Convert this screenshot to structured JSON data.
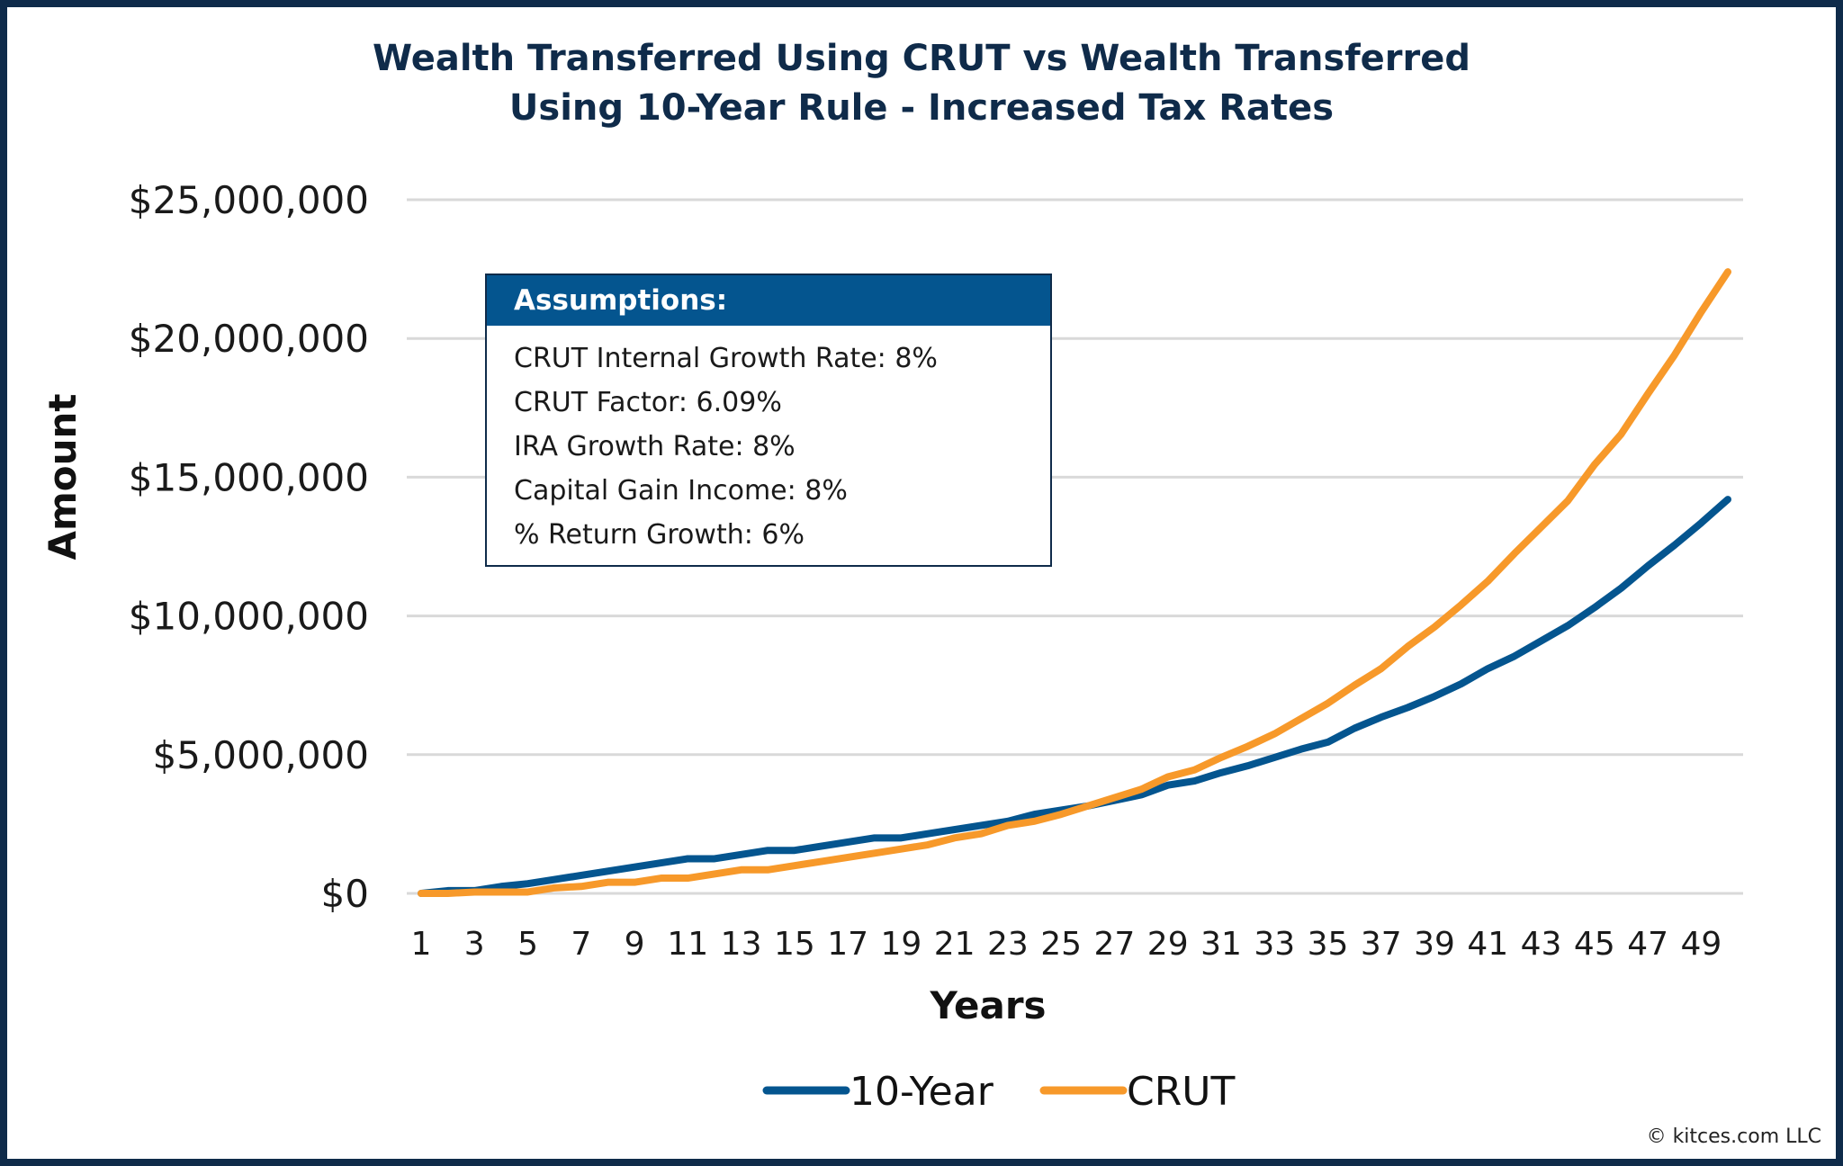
{
  "chart_data": {
    "type": "line",
    "title": "Wealth Transferred Using CRUT vs Wealth Transferred Using 10-Year Rule - Increased Tax Rates",
    "title_lines": [
      "Wealth Transferred Using CRUT vs Wealth Transferred",
      "Using 10-Year Rule - Increased Tax Rates"
    ],
    "xlabel": "Years",
    "ylabel": "Amount",
    "x": [
      1,
      2,
      3,
      4,
      5,
      6,
      7,
      8,
      9,
      10,
      11,
      12,
      13,
      14,
      15,
      16,
      17,
      18,
      19,
      20,
      21,
      22,
      23,
      24,
      25,
      26,
      27,
      28,
      29,
      30,
      31,
      32,
      33,
      34,
      35,
      36,
      37,
      38,
      39,
      40,
      41,
      42,
      43,
      44,
      45,
      46,
      47,
      48,
      49,
      50
    ],
    "x_tick_labels": [
      "1",
      "3",
      "5",
      "7",
      "9",
      "11",
      "13",
      "15",
      "17",
      "19",
      "21",
      "23",
      "25",
      "27",
      "29",
      "31",
      "33",
      "35",
      "37",
      "39",
      "41",
      "43",
      "45",
      "47",
      "49"
    ],
    "y_tick_labels": [
      "$0",
      "$5,000,000",
      "$10,000,000",
      "$15,000,000",
      "$20,000,000",
      "$25,000,000"
    ],
    "ylim": [
      0,
      25000000
    ],
    "grid": "horizontal",
    "legend_placement": "bottom",
    "series": [
      {
        "name": "10-Year",
        "color": "#04558f",
        "values": [
          0,
          100000,
          100000,
          250000,
          350000,
          500000,
          650000,
          800000,
          950000,
          1100000,
          1250000,
          1250000,
          1400000,
          1550000,
          1550000,
          1700000,
          1850000,
          2000000,
          2000000,
          2150000,
          2300000,
          2450000,
          2600000,
          2850000,
          3000000,
          3150000,
          3350000,
          3550000,
          3900000,
          4050000,
          4350000,
          4600000,
          4900000,
          5200000,
          5450000,
          5950000,
          6350000,
          6700000,
          7100000,
          7550000,
          8100000,
          8550000,
          9100000,
          9650000,
          10300000,
          11000000,
          11800000,
          12550000,
          13350000,
          14200000
        ]
      },
      {
        "name": "CRUT",
        "color": "#f7992a",
        "values": [
          0,
          0,
          50000,
          50000,
          50000,
          200000,
          250000,
          400000,
          400000,
          550000,
          550000,
          700000,
          850000,
          850000,
          1000000,
          1150000,
          1300000,
          1450000,
          1600000,
          1750000,
          2000000,
          2150000,
          2450000,
          2600000,
          2850000,
          3150000,
          3450000,
          3750000,
          4200000,
          4450000,
          4900000,
          5300000,
          5750000,
          6300000,
          6850000,
          7500000,
          8100000,
          8900000,
          9600000,
          10400000,
          11250000,
          12250000,
          13200000,
          14150000,
          15450000,
          16550000,
          18000000,
          19400000,
          20950000,
          22400000
        ]
      }
    ]
  },
  "assumptions": {
    "header": "Assumptions:",
    "lines": [
      "CRUT Internal Growth Rate: 8%",
      "CRUT Factor: 6.09%",
      "IRA Growth Rate: 8%",
      "Capital Gain Income: 8%",
      "% Return Growth: 6%"
    ]
  },
  "copyright": "© kitces.com LLC"
}
